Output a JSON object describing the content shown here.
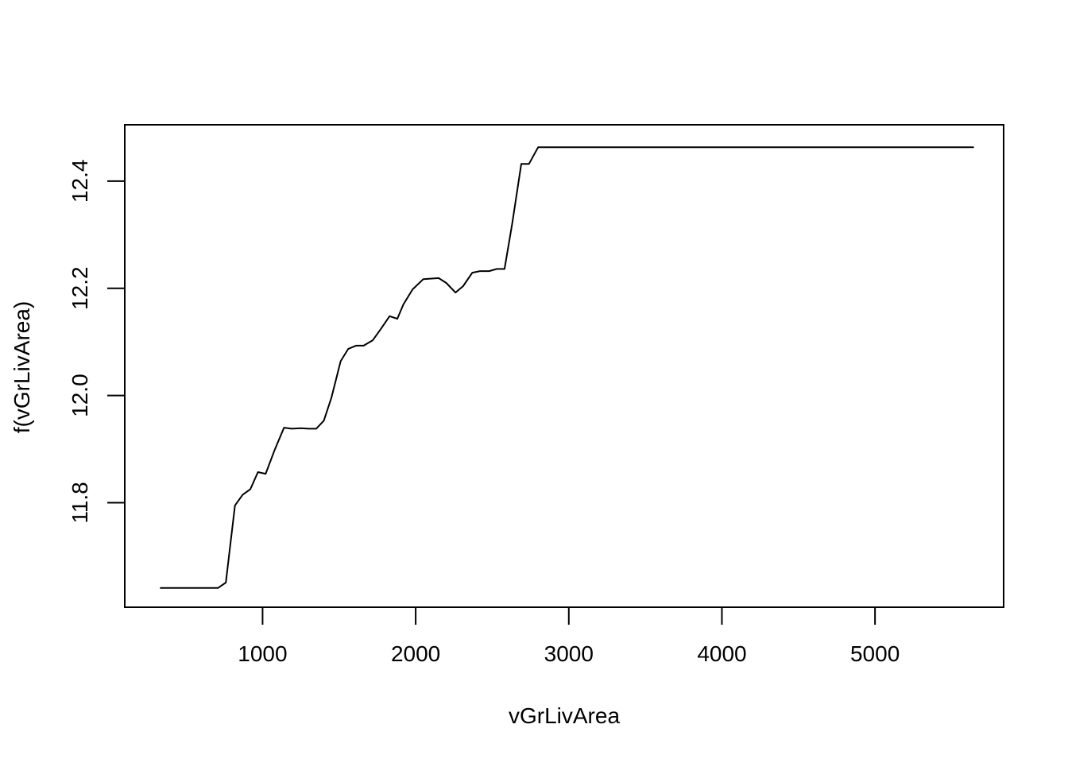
{
  "chart_data": {
    "type": "line",
    "title": "",
    "xlabel": "vGrLivArea",
    "ylabel": "f(vGrLivArea)",
    "xlim": [
      100,
      5840
    ],
    "ylim": [
      11.605,
      12.505
    ],
    "x_ticks": [
      1000,
      2000,
      3000,
      4000,
      5000
    ],
    "x_tick_labels": [
      "1000",
      "2000",
      "3000",
      "4000",
      "5000"
    ],
    "y_ticks": [
      11.8,
      12.0,
      12.2,
      12.4
    ],
    "y_tick_labels": [
      "11.8",
      "12.0",
      "12.2",
      "12.4"
    ],
    "grid": false,
    "series_color": "#000000",
    "series": [
      {
        "x": [
          334,
          710,
          760,
          820,
          870,
          920,
          970,
          1020,
          1080,
          1140,
          1190,
          1250,
          1300,
          1350,
          1400,
          1450,
          1510,
          1560,
          1610,
          1660,
          1720,
          1770,
          1830,
          1880,
          1920,
          1980,
          2050,
          2150,
          2200,
          2260,
          2310,
          2370,
          2420,
          2480,
          2530,
          2580,
          2630,
          2690,
          2740,
          2800,
          5642
        ],
        "y": [
          11.641,
          11.641,
          11.651,
          11.795,
          11.815,
          11.825,
          11.857,
          11.854,
          11.899,
          11.94,
          11.938,
          11.939,
          11.938,
          11.938,
          11.953,
          11.996,
          12.064,
          12.087,
          12.093,
          12.093,
          12.103,
          12.123,
          12.148,
          12.143,
          12.17,
          12.198,
          12.217,
          12.219,
          12.21,
          12.192,
          12.204,
          12.229,
          12.232,
          12.232,
          12.236,
          12.236,
          12.32,
          12.432,
          12.432,
          12.463,
          12.463
        ]
      }
    ]
  }
}
